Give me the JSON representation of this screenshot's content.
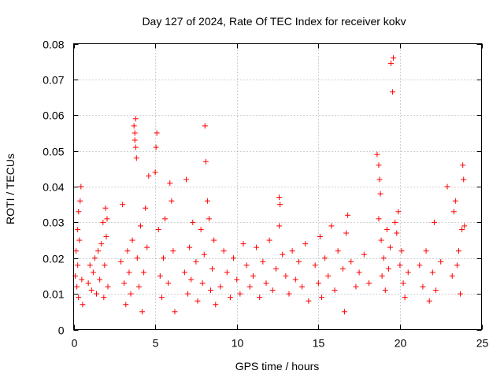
{
  "chart_data": {
    "type": "scatter",
    "title": "Day 127 of 2024, Rate Of TEC Index for receiver kokv",
    "xlabel": "GPS time / hours",
    "ylabel": "ROTI / TECUs",
    "xlim": [
      0,
      25
    ],
    "ylim": [
      0,
      0.08
    ],
    "xticks": [
      0,
      5,
      10,
      15,
      20,
      25
    ],
    "xtick_labels": [
      "0",
      "5",
      "10",
      "15",
      "20",
      "25"
    ],
    "yticks": [
      0,
      0.01,
      0.02,
      0.03,
      0.04,
      0.05,
      0.06,
      0.07,
      0.08
    ],
    "ytick_labels": [
      "0",
      "0.01",
      "0.02",
      "0.03",
      "0.04",
      "0.05",
      "0.06",
      "0.07",
      "0.08"
    ],
    "grid": true,
    "marker": "+",
    "color": "#ff0000",
    "series": [
      {
        "name": "ROTI",
        "points": [
          [
            0.1,
            0.015
          ],
          [
            0.15,
            0.022
          ],
          [
            0.2,
            0.012
          ],
          [
            0.25,
            0.018
          ],
          [
            0.3,
            0.009
          ],
          [
            0.35,
            0.025
          ],
          [
            0.4,
            0.036
          ],
          [
            0.45,
            0.04
          ],
          [
            0.5,
            0.014
          ],
          [
            0.55,
            0.007
          ],
          [
            0.3,
            0.033
          ],
          [
            0.25,
            0.028
          ],
          [
            0.9,
            0.013
          ],
          [
            1.0,
            0.018
          ],
          [
            1.1,
            0.011
          ],
          [
            1.2,
            0.016
          ],
          [
            1.3,
            0.02
          ],
          [
            1.4,
            0.01
          ],
          [
            1.5,
            0.022
          ],
          [
            1.6,
            0.014
          ],
          [
            1.7,
            0.024
          ],
          [
            1.8,
            0.03
          ],
          [
            1.9,
            0.018
          ],
          [
            2.0,
            0.026
          ],
          [
            2.1,
            0.012
          ],
          [
            1.95,
            0.034
          ],
          [
            2.05,
            0.031
          ],
          [
            1.85,
            0.009
          ],
          [
            2.9,
            0.019
          ],
          [
            3.0,
            0.035
          ],
          [
            3.1,
            0.013
          ],
          [
            3.2,
            0.007
          ],
          [
            3.3,
            0.022
          ],
          [
            3.4,
            0.016
          ],
          [
            3.5,
            0.01
          ],
          [
            3.6,
            0.025
          ],
          [
            3.7,
            0.057
          ],
          [
            3.75,
            0.055
          ],
          [
            3.8,
            0.051
          ],
          [
            3.85,
            0.048
          ],
          [
            3.8,
            0.059
          ],
          [
            3.75,
            0.053
          ],
          [
            3.9,
            0.02
          ],
          [
            4.0,
            0.012
          ],
          [
            4.1,
            0.029
          ],
          [
            4.2,
            0.005
          ],
          [
            4.3,
            0.016
          ],
          [
            4.4,
            0.034
          ],
          [
            4.5,
            0.023
          ],
          [
            4.6,
            0.043
          ],
          [
            5.0,
            0.044
          ],
          [
            5.1,
            0.055
          ],
          [
            5.05,
            0.051
          ],
          [
            5.2,
            0.028
          ],
          [
            5.3,
            0.015
          ],
          [
            5.4,
            0.009
          ],
          [
            5.5,
            0.02
          ],
          [
            5.6,
            0.031
          ],
          [
            5.8,
            0.013
          ],
          [
            5.9,
            0.041
          ],
          [
            6.0,
            0.036
          ],
          [
            6.1,
            0.022
          ],
          [
            6.2,
            0.005
          ],
          [
            6.8,
            0.016
          ],
          [
            6.9,
            0.042
          ],
          [
            7.0,
            0.01
          ],
          [
            7.1,
            0.023
          ],
          [
            7.2,
            0.014
          ],
          [
            7.3,
            0.03
          ],
          [
            7.5,
            0.019
          ],
          [
            7.6,
            0.008
          ],
          [
            7.8,
            0.028
          ],
          [
            7.9,
            0.013
          ],
          [
            8.0,
            0.021
          ],
          [
            8.05,
            0.057
          ],
          [
            8.1,
            0.047
          ],
          [
            8.2,
            0.036
          ],
          [
            8.3,
            0.031
          ],
          [
            8.4,
            0.011
          ],
          [
            8.5,
            0.017
          ],
          [
            8.6,
            0.025
          ],
          [
            8.7,
            0.007
          ],
          [
            9.0,
            0.012
          ],
          [
            9.2,
            0.022
          ],
          [
            9.4,
            0.016
          ],
          [
            9.6,
            0.009
          ],
          [
            9.8,
            0.02
          ],
          [
            10.0,
            0.014
          ],
          [
            10.2,
            0.01
          ],
          [
            10.4,
            0.024
          ],
          [
            10.6,
            0.018
          ],
          [
            10.8,
            0.012
          ],
          [
            11.0,
            0.015
          ],
          [
            11.2,
            0.023
          ],
          [
            11.4,
            0.009
          ],
          [
            11.6,
            0.019
          ],
          [
            11.8,
            0.013
          ],
          [
            12.0,
            0.025
          ],
          [
            12.2,
            0.011
          ],
          [
            12.4,
            0.017
          ],
          [
            12.6,
            0.037
          ],
          [
            12.65,
            0.035
          ],
          [
            12.6,
            0.029
          ],
          [
            12.8,
            0.021
          ],
          [
            13.0,
            0.015
          ],
          [
            13.2,
            0.01
          ],
          [
            13.4,
            0.022
          ],
          [
            13.6,
            0.014
          ],
          [
            13.8,
            0.019
          ],
          [
            14.0,
            0.012
          ],
          [
            14.2,
            0.024
          ],
          [
            14.4,
            0.008
          ],
          [
            14.8,
            0.018
          ],
          [
            15.0,
            0.013
          ],
          [
            15.1,
            0.026
          ],
          [
            15.2,
            0.009
          ],
          [
            15.4,
            0.02
          ],
          [
            15.6,
            0.015
          ],
          [
            15.8,
            0.029
          ],
          [
            16.0,
            0.011
          ],
          [
            16.2,
            0.022
          ],
          [
            16.5,
            0.017
          ],
          [
            16.7,
            0.027
          ],
          [
            16.8,
            0.032
          ],
          [
            16.6,
            0.005
          ],
          [
            17.0,
            0.019
          ],
          [
            17.3,
            0.012
          ],
          [
            17.5,
            0.016
          ],
          [
            17.8,
            0.021
          ],
          [
            18.1,
            0.013
          ],
          [
            18.6,
            0.049
          ],
          [
            18.7,
            0.046
          ],
          [
            18.75,
            0.042
          ],
          [
            18.8,
            0.038
          ],
          [
            18.7,
            0.031
          ],
          [
            18.85,
            0.025
          ],
          [
            18.9,
            0.015
          ],
          [
            19.0,
            0.02
          ],
          [
            19.1,
            0.011
          ],
          [
            19.2,
            0.028
          ],
          [
            19.3,
            0.017
          ],
          [
            19.4,
            0.023
          ],
          [
            19.45,
            0.0745
          ],
          [
            19.6,
            0.076
          ],
          [
            19.55,
            0.0665
          ],
          [
            19.7,
            0.03
          ],
          [
            19.8,
            0.027
          ],
          [
            19.9,
            0.033
          ],
          [
            20.0,
            0.018
          ],
          [
            20.1,
            0.022
          ],
          [
            20.2,
            0.013
          ],
          [
            20.3,
            0.009
          ],
          [
            20.5,
            0.016
          ],
          [
            21.2,
            0.018
          ],
          [
            21.4,
            0.012
          ],
          [
            21.6,
            0.022
          ],
          [
            21.8,
            0.008
          ],
          [
            22.0,
            0.016
          ],
          [
            22.1,
            0.03
          ],
          [
            22.2,
            0.011
          ],
          [
            22.5,
            0.019
          ],
          [
            22.9,
            0.04
          ],
          [
            23.2,
            0.015
          ],
          [
            23.3,
            0.033
          ],
          [
            23.4,
            0.036
          ],
          [
            23.5,
            0.018
          ],
          [
            23.6,
            0.022
          ],
          [
            23.7,
            0.01
          ],
          [
            23.8,
            0.028
          ],
          [
            23.85,
            0.046
          ],
          [
            23.9,
            0.042
          ],
          [
            23.95,
            0.029
          ]
        ]
      }
    ]
  }
}
